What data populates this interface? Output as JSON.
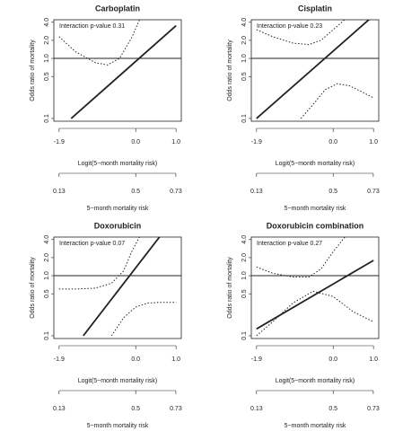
{
  "chart_data": [
    {
      "type": "line",
      "title": "Carboplatin",
      "annotation": "Interaction p-value 0.31",
      "ylabel": "Odds ratio of mortality",
      "xlabel": "Logit(5−month mortality risk)",
      "x2label": "5−month mortality risk",
      "xlim": [
        -2.03,
        1.13
      ],
      "ylim": [
        0.09,
        4.4
      ],
      "ylog": true,
      "reference_line": 1,
      "xticks": [
        {
          "value": -1.9,
          "label": "-1.9"
        },
        {
          "value": 0,
          "label": "0.0"
        },
        {
          "value": 1,
          "label": "1.0"
        }
      ],
      "x2ticks": [
        0.13,
        0.5,
        0.73
      ],
      "yticks": [
        0.1,
        0.5,
        {
          "value": 1,
          "label": "1.0"
        },
        {
          "value": 2,
          "label": "2.0"
        },
        {
          "value": 4,
          "label": "4.0"
        }
      ],
      "series": [
        {
          "style": "solid",
          "color": "#222222",
          "x": [
            -1.6,
            1.0
          ],
          "values": [
            0.1,
            3.5
          ]
        },
        {
          "style": "dotted",
          "color": "#222222",
          "x": [
            -1.9,
            -1.5,
            -1.0,
            -0.7,
            -0.4,
            -0.1,
            0.1
          ],
          "values": [
            2.3,
            1.3,
            0.85,
            0.78,
            1.0,
            2.2,
            4.5
          ]
        }
      ]
    },
    {
      "type": "line",
      "title": "Cisplatin",
      "annotation": "Interaction p-value 0.23",
      "ylabel": "Odds ratio of mortality",
      "xlabel": "Logit(5−month mortality risk)",
      "x2label": "5−month mortality risk",
      "xlim": [
        -2.03,
        1.13
      ],
      "ylim": [
        0.09,
        4.4
      ],
      "ylog": true,
      "reference_line": 1,
      "xticks": [
        {
          "value": -1.9,
          "label": "-1.9"
        },
        {
          "value": 0,
          "label": "0.0"
        },
        {
          "value": 1,
          "label": "1.0"
        }
      ],
      "x2ticks": [
        0.13,
        0.5,
        0.73
      ],
      "yticks": [
        0.1,
        0.5,
        {
          "value": 1,
          "label": "1.0"
        },
        {
          "value": 2,
          "label": "2.0"
        },
        {
          "value": 4,
          "label": "4.0"
        }
      ],
      "series": [
        {
          "style": "solid",
          "color": "#222222",
          "x": [
            -1.9,
            0.9
          ],
          "values": [
            0.1,
            4.5
          ]
        },
        {
          "style": "dotted",
          "color": "#222222",
          "x": [
            -1.9,
            -1.5,
            -1.0,
            -0.6,
            -0.3,
            0.0,
            0.3
          ],
          "values": [
            3.0,
            2.3,
            1.8,
            1.7,
            2.0,
            3.0,
            4.5
          ]
        },
        {
          "style": "dotted",
          "color": "#222222",
          "x": [
            -0.8,
            -0.5,
            -0.2,
            0.1,
            0.4,
            0.7,
            1.0
          ],
          "values": [
            0.1,
            0.17,
            0.3,
            0.38,
            0.35,
            0.28,
            0.22
          ]
        }
      ]
    },
    {
      "type": "line",
      "title": "Doxorubicin",
      "annotation": "Interaction p-value 0.07",
      "ylabel": "Odds ratio of mortality",
      "xlabel": "Logit(5−month mortality risk)",
      "x2label": "5−month mortality risk",
      "xlim": [
        -2.03,
        1.13
      ],
      "ylim": [
        0.09,
        4.4
      ],
      "ylog": true,
      "reference_line": 1,
      "xticks": [
        {
          "value": -1.9,
          "label": "-1.9"
        },
        {
          "value": 0,
          "label": "0.0"
        },
        {
          "value": 1,
          "label": "1.0"
        }
      ],
      "x2ticks": [
        0.13,
        0.5,
        0.73
      ],
      "yticks": [
        0.1,
        0.5,
        {
          "value": 1,
          "label": "1.0"
        },
        {
          "value": 2,
          "label": "2.0"
        },
        {
          "value": 4,
          "label": "4.0"
        }
      ],
      "series": [
        {
          "style": "solid",
          "color": "#222222",
          "x": [
            -1.3,
            0.6
          ],
          "values": [
            0.1,
            4.5
          ]
        },
        {
          "style": "dotted",
          "color": "#222222",
          "x": [
            -1.9,
            -1.5,
            -1.0,
            -0.6,
            -0.3,
            -0.1,
            0.1
          ],
          "values": [
            0.6,
            0.6,
            0.62,
            0.75,
            1.2,
            2.5,
            4.5
          ]
        },
        {
          "style": "dotted",
          "color": "#222222",
          "x": [
            -0.6,
            -0.3,
            0.0,
            0.3,
            0.6,
            1.0
          ],
          "values": [
            0.1,
            0.2,
            0.3,
            0.35,
            0.36,
            0.36
          ]
        }
      ]
    },
    {
      "type": "line",
      "title": "Doxorubicin combination",
      "annotation": "Interaction p-value 0.27",
      "ylabel": "Odds ratio of mortality",
      "xlabel": "Logit(5−month mortality risk)",
      "x2label": "5−month mortality risk",
      "xlim": [
        -2.03,
        1.13
      ],
      "ylim": [
        0.09,
        4.4
      ],
      "ylog": true,
      "reference_line": 1,
      "xticks": [
        {
          "value": -1.9,
          "label": "-1.9"
        },
        {
          "value": 0,
          "label": "0.0"
        },
        {
          "value": 1,
          "label": "1.0"
        }
      ],
      "x2ticks": [
        0.13,
        0.5,
        0.73
      ],
      "yticks": [
        0.1,
        0.5,
        {
          "value": 1,
          "label": "1.0"
        },
        {
          "value": 2,
          "label": "2.0"
        },
        {
          "value": 4,
          "label": "4.0"
        }
      ],
      "series": [
        {
          "style": "solid",
          "color": "#222222",
          "x": [
            -1.9,
            1.0
          ],
          "values": [
            0.13,
            1.8
          ]
        },
        {
          "style": "dotted",
          "color": "#222222",
          "x": [
            -1.9,
            -1.5,
            -1.0,
            -0.6,
            -0.3,
            0.0,
            0.3
          ],
          "values": [
            1.4,
            1.1,
            0.95,
            0.95,
            1.3,
            2.5,
            4.5
          ]
        },
        {
          "style": "dotted",
          "color": "#222222",
          "x": [
            -1.9,
            -1.5,
            -1.0,
            -0.5,
            0.0,
            0.5,
            1.0
          ],
          "values": [
            0.1,
            0.17,
            0.35,
            0.55,
            0.45,
            0.25,
            0.17
          ]
        }
      ]
    }
  ]
}
